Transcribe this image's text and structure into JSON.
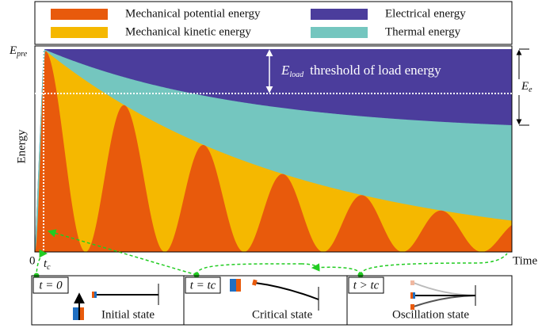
{
  "legend": {
    "potential": "Mechanical potential energy",
    "kinetic": "Mechanical kinetic energy",
    "electrical": "Electrical energy",
    "thermal": "Thermal energy"
  },
  "axes": {
    "y_label": "Energy",
    "x_label": "Time",
    "origin": "0",
    "tc": {
      "base": "t",
      "sub": "c"
    },
    "epre": {
      "base": "E",
      "sub": "pre"
    }
  },
  "annotations": {
    "eload": {
      "base": "E",
      "sub": "load",
      "text": "threshold of load energy"
    },
    "ee": {
      "base": "E",
      "sub": "e"
    }
  },
  "panels": [
    {
      "time": "t = 0",
      "label": "Initial state"
    },
    {
      "time": "t = tc",
      "label": "Critical state"
    },
    {
      "time": "t > tc",
      "label": "Oscillation state"
    }
  ]
}
